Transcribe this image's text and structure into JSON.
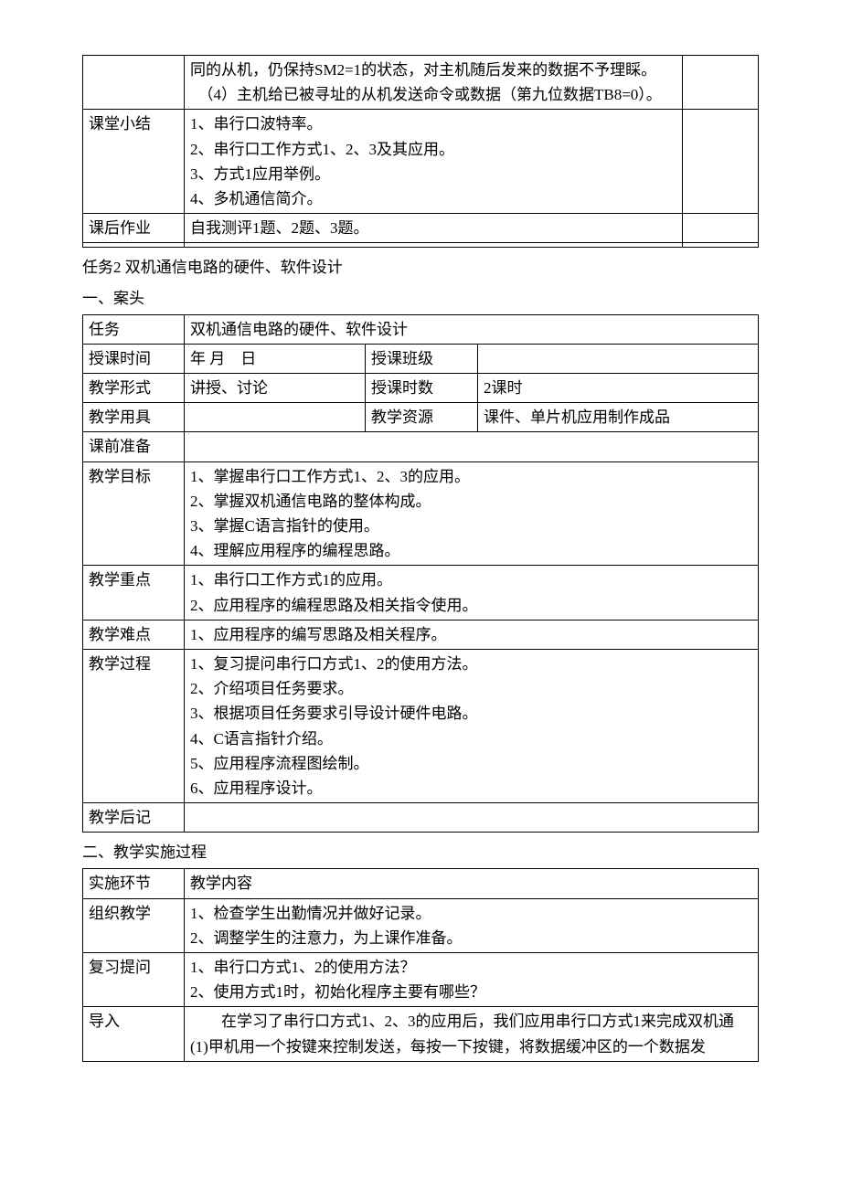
{
  "table1": {
    "row1": {
      "label": "",
      "content": "同的从机，仍保持SM2=1的状态，对主机随后发来的数据不予理睬。\n　（4）主机给已被寻址的从机发送命令或数据（第九位数据TB8=0）。"
    },
    "row2": {
      "label": "课堂小结",
      "content": "1、串行口波特率。\n2、串行口工作方式1、2、3及其应用。\n3、方式1应用举例。\n4、多机通信简介。"
    },
    "row3": {
      "label": "课后作业",
      "content": "自我测评1题、2题、3题。"
    }
  },
  "section1": {
    "title": "任务2 双机通信电路的硬件、软件设计",
    "subtitle": "一、案头"
  },
  "table2": {
    "r1": {
      "label": "任务",
      "v1": "双机通信电路的硬件、软件设计"
    },
    "r2": {
      "label": "授课时间",
      "v1": "年 月　日",
      "v2": "授课班级",
      "v3": ""
    },
    "r3": {
      "label": "教学形式",
      "v1": "讲授、讨论",
      "v2": "授课时数",
      "v3": "2课时"
    },
    "r4": {
      "label": "教学用具",
      "v1": "",
      "v2": "教学资源",
      "v3": "课件、单片机应用制作成品"
    },
    "r5": {
      "label": "课前准备",
      "v1": ""
    },
    "r6": {
      "label": "教学目标",
      "v1": "1、掌握串行口工作方式1、2、3的应用。\n2、掌握双机通信电路的整体构成。\n3、掌握C语言指针的使用。\n4、理解应用程序的编程思路。"
    },
    "r7": {
      "label": "教学重点",
      "v1": "1、串行口工作方式1的应用。\n2、应用程序的编程思路及相关指令使用。"
    },
    "r8": {
      "label": "教学难点",
      "v1": "1、应用程序的编写思路及相关程序。"
    },
    "r9": {
      "label": "教学过程",
      "v1": "1、复习提问串行口方式1、2的使用方法。\n2、介绍项目任务要求。\n3、根据项目任务要求引导设计硬件电路。\n4、C语言指针介绍。\n5、应用程序流程图绘制。\n6、应用程序设计。"
    },
    "r10": {
      "label": "教学后记",
      "v1": ""
    }
  },
  "section2": {
    "title": "二、教学实施过程"
  },
  "table3": {
    "r1": {
      "label": "实施环节",
      "v1": "教学内容"
    },
    "r2": {
      "label": "组织教学",
      "v1": "1、检查学生出勤情况并做好记录。\n2、调整学生的注意力，为上课作准备。"
    },
    "r3": {
      "label": "复习提问",
      "v1": "1、串行口方式1、2的使用方法？\n2、使用方式1时，初始化程序主要有哪些？"
    },
    "r4": {
      "label": "导入",
      "v1": "　　在学习了串行口方式1、2、3的应用后，我们应用串行口方式1来完成双机通\n(1)甲机用一个按键来控制发送，每按一下按键，将数据缓冲区的一个数据发"
    }
  }
}
